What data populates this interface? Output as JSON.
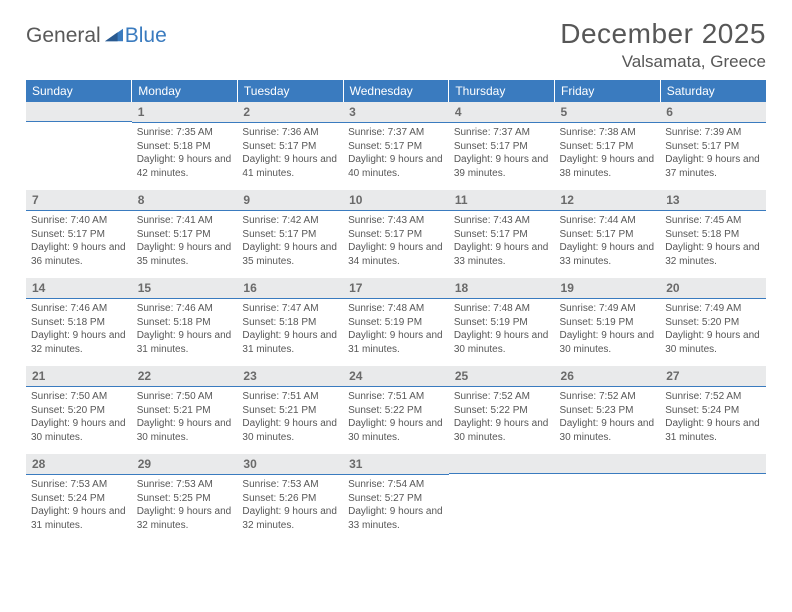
{
  "brand": {
    "textA": "General",
    "textB": "Blue"
  },
  "title": "December 2025",
  "location": "Valsamata, Greece",
  "theme": {
    "header_bg": "#3a7bbf",
    "header_fg": "#ffffff",
    "daynum_bg": "#e9eaeb",
    "daynum_fg": "#6a6a6a",
    "body_fg": "#575757",
    "rule": "#3a7bbf"
  },
  "days": [
    "Sunday",
    "Monday",
    "Tuesday",
    "Wednesday",
    "Thursday",
    "Friday",
    "Saturday"
  ],
  "weeks": [
    [
      null,
      {
        "n": "1",
        "sr": "7:35 AM",
        "ss": "5:18 PM",
        "dl": "9 hours and 42 minutes."
      },
      {
        "n": "2",
        "sr": "7:36 AM",
        "ss": "5:17 PM",
        "dl": "9 hours and 41 minutes."
      },
      {
        "n": "3",
        "sr": "7:37 AM",
        "ss": "5:17 PM",
        "dl": "9 hours and 40 minutes."
      },
      {
        "n": "4",
        "sr": "7:37 AM",
        "ss": "5:17 PM",
        "dl": "9 hours and 39 minutes."
      },
      {
        "n": "5",
        "sr": "7:38 AM",
        "ss": "5:17 PM",
        "dl": "9 hours and 38 minutes."
      },
      {
        "n": "6",
        "sr": "7:39 AM",
        "ss": "5:17 PM",
        "dl": "9 hours and 37 minutes."
      }
    ],
    [
      {
        "n": "7",
        "sr": "7:40 AM",
        "ss": "5:17 PM",
        "dl": "9 hours and 36 minutes."
      },
      {
        "n": "8",
        "sr": "7:41 AM",
        "ss": "5:17 PM",
        "dl": "9 hours and 35 minutes."
      },
      {
        "n": "9",
        "sr": "7:42 AM",
        "ss": "5:17 PM",
        "dl": "9 hours and 35 minutes."
      },
      {
        "n": "10",
        "sr": "7:43 AM",
        "ss": "5:17 PM",
        "dl": "9 hours and 34 minutes."
      },
      {
        "n": "11",
        "sr": "7:43 AM",
        "ss": "5:17 PM",
        "dl": "9 hours and 33 minutes."
      },
      {
        "n": "12",
        "sr": "7:44 AM",
        "ss": "5:17 PM",
        "dl": "9 hours and 33 minutes."
      },
      {
        "n": "13",
        "sr": "7:45 AM",
        "ss": "5:18 PM",
        "dl": "9 hours and 32 minutes."
      }
    ],
    [
      {
        "n": "14",
        "sr": "7:46 AM",
        "ss": "5:18 PM",
        "dl": "9 hours and 32 minutes."
      },
      {
        "n": "15",
        "sr": "7:46 AM",
        "ss": "5:18 PM",
        "dl": "9 hours and 31 minutes."
      },
      {
        "n": "16",
        "sr": "7:47 AM",
        "ss": "5:18 PM",
        "dl": "9 hours and 31 minutes."
      },
      {
        "n": "17",
        "sr": "7:48 AM",
        "ss": "5:19 PM",
        "dl": "9 hours and 31 minutes."
      },
      {
        "n": "18",
        "sr": "7:48 AM",
        "ss": "5:19 PM",
        "dl": "9 hours and 30 minutes."
      },
      {
        "n": "19",
        "sr": "7:49 AM",
        "ss": "5:19 PM",
        "dl": "9 hours and 30 minutes."
      },
      {
        "n": "20",
        "sr": "7:49 AM",
        "ss": "5:20 PM",
        "dl": "9 hours and 30 minutes."
      }
    ],
    [
      {
        "n": "21",
        "sr": "7:50 AM",
        "ss": "5:20 PM",
        "dl": "9 hours and 30 minutes."
      },
      {
        "n": "22",
        "sr": "7:50 AM",
        "ss": "5:21 PM",
        "dl": "9 hours and 30 minutes."
      },
      {
        "n": "23",
        "sr": "7:51 AM",
        "ss": "5:21 PM",
        "dl": "9 hours and 30 minutes."
      },
      {
        "n": "24",
        "sr": "7:51 AM",
        "ss": "5:22 PM",
        "dl": "9 hours and 30 minutes."
      },
      {
        "n": "25",
        "sr": "7:52 AM",
        "ss": "5:22 PM",
        "dl": "9 hours and 30 minutes."
      },
      {
        "n": "26",
        "sr": "7:52 AM",
        "ss": "5:23 PM",
        "dl": "9 hours and 30 minutes."
      },
      {
        "n": "27",
        "sr": "7:52 AM",
        "ss": "5:24 PM",
        "dl": "9 hours and 31 minutes."
      }
    ],
    [
      {
        "n": "28",
        "sr": "7:53 AM",
        "ss": "5:24 PM",
        "dl": "9 hours and 31 minutes."
      },
      {
        "n": "29",
        "sr": "7:53 AM",
        "ss": "5:25 PM",
        "dl": "9 hours and 32 minutes."
      },
      {
        "n": "30",
        "sr": "7:53 AM",
        "ss": "5:26 PM",
        "dl": "9 hours and 32 minutes."
      },
      {
        "n": "31",
        "sr": "7:54 AM",
        "ss": "5:27 PM",
        "dl": "9 hours and 33 minutes."
      },
      null,
      null,
      null
    ]
  ],
  "labels": {
    "sunrise": "Sunrise:",
    "sunset": "Sunset:",
    "daylight": "Daylight:"
  }
}
